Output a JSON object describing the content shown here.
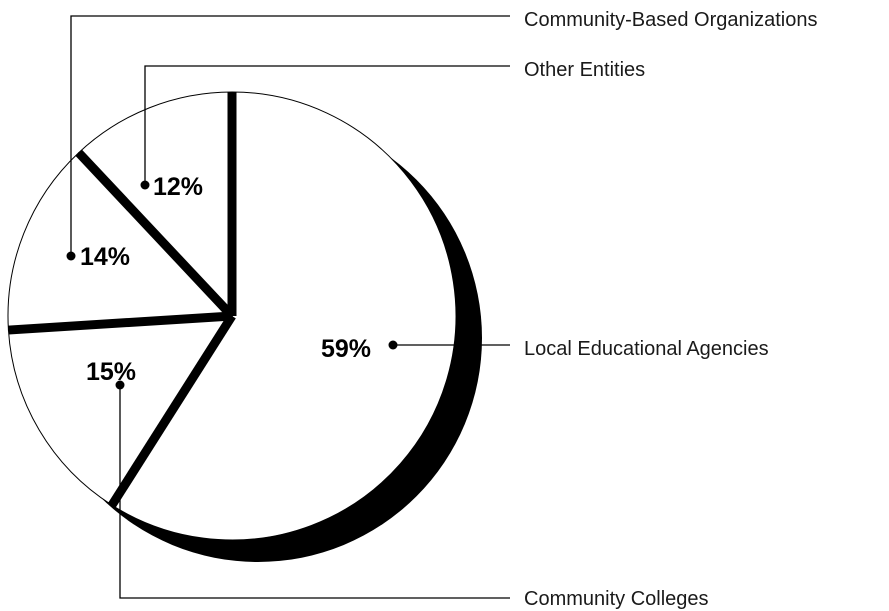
{
  "chart_data": {
    "type": "pie",
    "title": "",
    "slices": [
      {
        "label": "Local Educational Agencies",
        "value": 59,
        "display": "59%"
      },
      {
        "label": "Community Colleges",
        "value": 15,
        "display": "15%"
      },
      {
        "label": "Community-Based Organizations",
        "value": 14,
        "display": "14%"
      },
      {
        "label": "Other Entities",
        "value": 12,
        "display": "12%"
      }
    ],
    "legend": "callout lines",
    "colors": {
      "slice_fill": "#ffffff",
      "edge": "#000000",
      "shadow": "#000000"
    }
  }
}
